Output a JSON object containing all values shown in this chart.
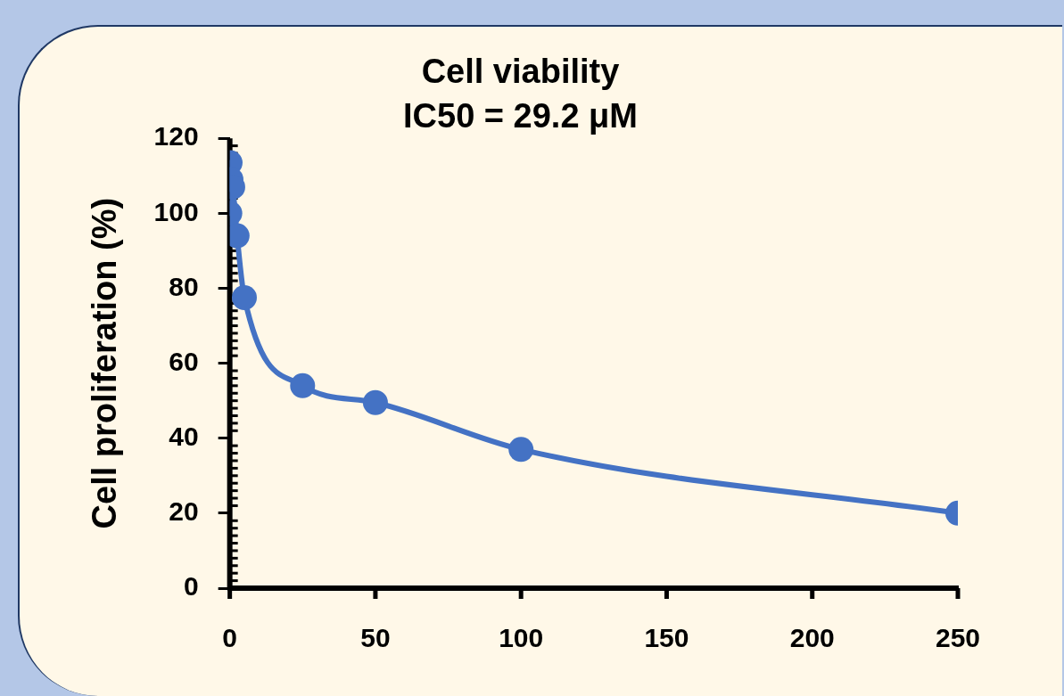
{
  "chart_data": {
    "type": "line",
    "title": "Cell viability",
    "subtitle": "IC50 = 29.2 μM",
    "ylabel": "Cell proliferation (%)",
    "x": [
      0,
      0.1,
      0.4,
      1,
      2.5,
      5,
      25,
      50,
      100,
      250
    ],
    "series": [
      {
        "color": "#4472c4",
        "values": [
          100,
          113.5,
          109,
          107,
          94,
          77.5,
          54,
          49.5,
          37,
          20
        ]
      }
    ],
    "xlim": [
      0,
      250
    ],
    "xticks": [
      0,
      50,
      100,
      150,
      200,
      250
    ],
    "ylim": [
      0,
      120
    ],
    "yticks": [
      0,
      {
        "value": 2,
        "label": null
      },
      {
        "value": 4,
        "label": null
      },
      {
        "value": 6,
        "label": null
      },
      {
        "value": 8,
        "label": null
      },
      {
        "value": 10,
        "label": null
      },
      {
        "value": 12,
        "label": null
      },
      {
        "value": 14,
        "label": null
      },
      {
        "value": 16,
        "label": null
      },
      {
        "value": 18,
        "label": null
      },
      20,
      {
        "value": 22,
        "label": null
      },
      {
        "value": 24,
        "label": null
      },
      {
        "value": 26,
        "label": null
      },
      {
        "value": 28,
        "label": null
      },
      {
        "value": 30,
        "label": null
      },
      {
        "value": 32,
        "label": null
      },
      {
        "value": 34,
        "label": null
      },
      {
        "value": 36,
        "label": null
      },
      {
        "value": 38,
        "label": null
      },
      40,
      {
        "value": 42,
        "label": null
      },
      {
        "value": 44,
        "label": null
      },
      {
        "value": 46,
        "label": null
      },
      {
        "value": 48,
        "label": null
      },
      {
        "value": 50,
        "label": null
      },
      {
        "value": 52,
        "label": null
      },
      {
        "value": 54,
        "label": null
      },
      {
        "value": 56,
        "label": null
      },
      {
        "value": 58,
        "label": null
      },
      60,
      {
        "value": 62,
        "label": null
      },
      {
        "value": 64,
        "label": null
      },
      {
        "value": 66,
        "label": null
      },
      {
        "value": 68,
        "label": null
      },
      {
        "value": 70,
        "label": null
      },
      {
        "value": 72,
        "label": null
      },
      {
        "value": 74,
        "label": null
      },
      {
        "value": 76,
        "label": null
      },
      {
        "value": 78,
        "label": null
      },
      80,
      {
        "value": 82,
        "label": null
      },
      {
        "value": 84,
        "label": null
      },
      {
        "value": 86,
        "label": null
      },
      {
        "value": 88,
        "label": null
      },
      {
        "value": 90,
        "label": null
      },
      {
        "value": 92,
        "label": null
      },
      {
        "value": 94,
        "label": null
      },
      {
        "value": 96,
        "label": null
      },
      {
        "value": 98,
        "label": null
      },
      100,
      {
        "value": 102,
        "label": null
      },
      {
        "value": 104,
        "label": null
      },
      {
        "value": 106,
        "label": null
      },
      {
        "value": 108,
        "label": null
      },
      {
        "value": 110,
        "label": null
      },
      {
        "value": 112,
        "label": null
      },
      {
        "value": 114,
        "label": null
      },
      {
        "value": 116,
        "label": null
      },
      {
        "value": 118,
        "label": null
      },
      120
    ],
    "marker": "circle",
    "line_style": "solid",
    "grid": false,
    "legend": false
  }
}
